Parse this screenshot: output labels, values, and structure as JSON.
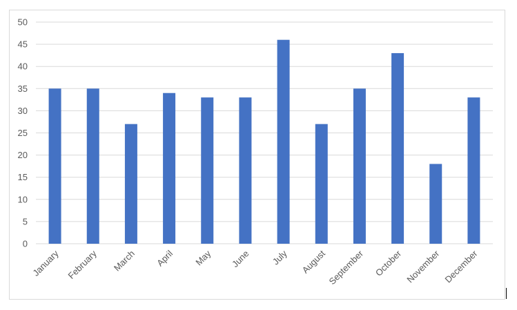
{
  "chart_data": {
    "type": "bar",
    "title": "",
    "xlabel": "",
    "ylabel": "",
    "categories": [
      "January",
      "February",
      "March",
      "April",
      "May",
      "June",
      "July",
      "August",
      "September",
      "October",
      "November",
      "December"
    ],
    "values": [
      35,
      35,
      27,
      34,
      33,
      33,
      46,
      27,
      35,
      43,
      18,
      33
    ],
    "ylim": [
      0,
      50
    ],
    "yticks": [
      0,
      5,
      10,
      15,
      20,
      25,
      30,
      35,
      40,
      45,
      50
    ],
    "grid": true,
    "legend": "none",
    "bar_color": "#4472c4",
    "grid_color": "#d9d9d9"
  }
}
